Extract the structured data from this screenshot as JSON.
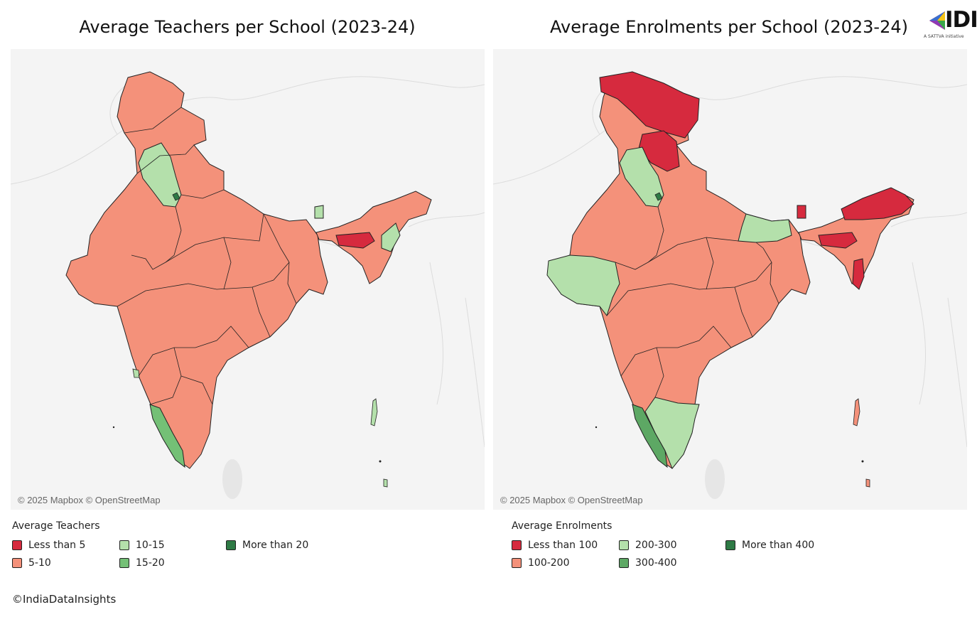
{
  "maps": [
    {
      "title": "Average Teachers per School (2023-24)",
      "attribution": "© 2025 Mapbox © OpenStreetMap",
      "legend": {
        "title": "Average Teachers",
        "items": [
          {
            "label": "Less than 5",
            "color": "#d62a3e"
          },
          {
            "label": "5-10",
            "color": "#f4917a"
          },
          {
            "label": "10-15",
            "color": "#b4e0ab"
          },
          {
            "label": "15-20",
            "color": "#74c076"
          },
          {
            "label": "More than 20",
            "color": "#2e7a45"
          }
        ]
      }
    },
    {
      "title": "Average Enrolments per School (2023-24)",
      "attribution": "© 2025 Mapbox © OpenStreetMap",
      "legend": {
        "title": "Average Enrolments",
        "items": [
          {
            "label": "Less than 100",
            "color": "#d62a3e"
          },
          {
            "label": "100-200",
            "color": "#f4917a"
          },
          {
            "label": "200-300",
            "color": "#b4e0ab"
          },
          {
            "label": "300-400",
            "color": "#5da864"
          },
          {
            "label": "More than 400",
            "color": "#2e7a45"
          }
        ]
      }
    }
  ],
  "footer": "©IndiaDataInsights",
  "logo": {
    "text": "IDI",
    "subtitle": "A SATTVA initiative"
  }
}
